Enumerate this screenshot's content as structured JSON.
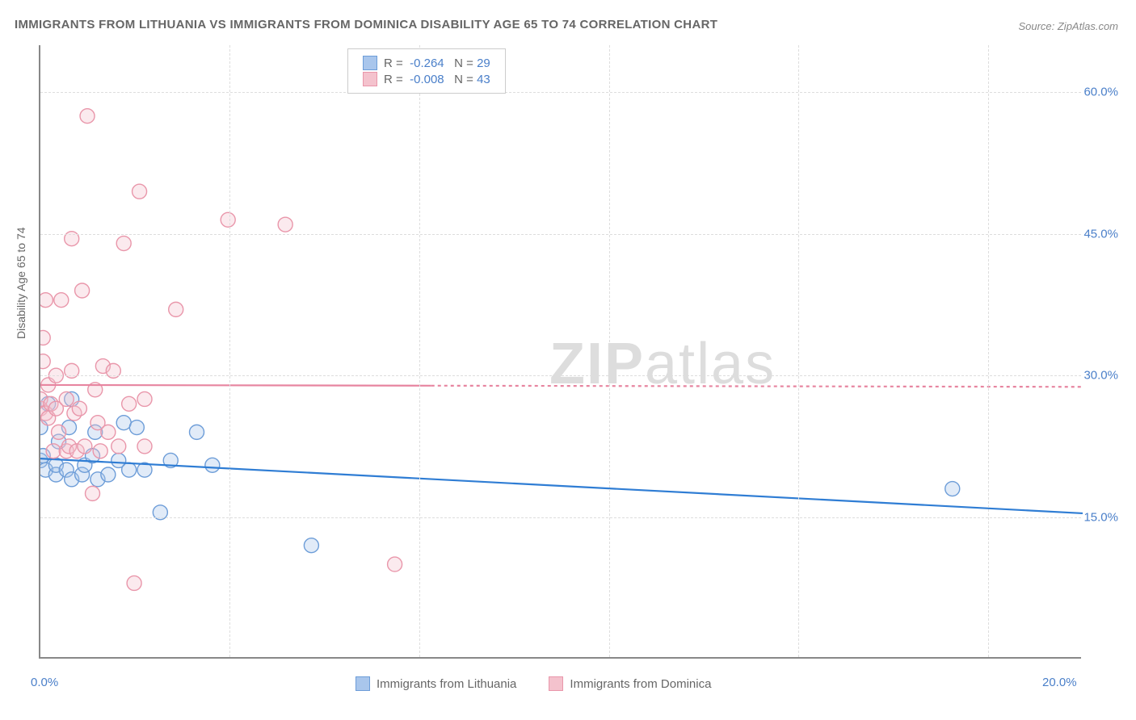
{
  "title": "IMMIGRANTS FROM LITHUANIA VS IMMIGRANTS FROM DOMINICA DISABILITY AGE 65 TO 74 CORRELATION CHART",
  "source": "Source: ZipAtlas.com",
  "y_axis_label": "Disability Age 65 to 74",
  "watermark": "ZIPatlas",
  "chart": {
    "type": "scatter",
    "xlim": [
      0,
      20
    ],
    "ylim": [
      0,
      65
    ],
    "x_ticks": [
      {
        "value": 0,
        "label": "0.0%"
      },
      {
        "value": 20,
        "label": "20.0%"
      }
    ],
    "y_ticks": [
      {
        "value": 15,
        "label": "15.0%"
      },
      {
        "value": 30,
        "label": "30.0%"
      },
      {
        "value": 45,
        "label": "45.0%"
      },
      {
        "value": 60,
        "label": "60.0%"
      }
    ],
    "grid_v_values": [
      3.63,
      7.27,
      10.91,
      14.55,
      18.18
    ],
    "plot_area_bg": "#ffffff",
    "grid_color": "#dddddd",
    "axis_color": "#888888",
    "marker_radius": 9,
    "marker_fill_opacity": 0.35,
    "marker_stroke_width": 1.4,
    "trend_line_width": 2.2,
    "series": [
      {
        "name": "Immigrants from Lithuania",
        "color_fill": "#a9c6ec",
        "color_stroke": "#6d9dd8",
        "color_line": "#2f7dd4",
        "R": "-0.264",
        "N": "29",
        "trend": {
          "x0": 0,
          "y0": 21.2,
          "x1": 20,
          "y1": 15.4
        },
        "points": [
          [
            0.0,
            21.0
          ],
          [
            0.0,
            24.5
          ],
          [
            0.05,
            21.5
          ],
          [
            0.1,
            20.0
          ],
          [
            0.15,
            27.0
          ],
          [
            0.3,
            19.5
          ],
          [
            0.3,
            20.5
          ],
          [
            0.35,
            23.0
          ],
          [
            0.5,
            20.0
          ],
          [
            0.55,
            24.5
          ],
          [
            0.6,
            19.0
          ],
          [
            0.6,
            27.5
          ],
          [
            0.8,
            19.5
          ],
          [
            0.85,
            20.5
          ],
          [
            1.0,
            21.5
          ],
          [
            1.05,
            24.0
          ],
          [
            1.1,
            19.0
          ],
          [
            1.3,
            19.5
          ],
          [
            1.5,
            21.0
          ],
          [
            1.6,
            25.0
          ],
          [
            1.7,
            20.0
          ],
          [
            1.85,
            24.5
          ],
          [
            2.0,
            20.0
          ],
          [
            2.3,
            15.5
          ],
          [
            2.5,
            21.0
          ],
          [
            3.0,
            24.0
          ],
          [
            3.3,
            20.5
          ],
          [
            5.2,
            12.0
          ],
          [
            17.5,
            18.0
          ]
        ]
      },
      {
        "name": "Immigrants from Dominica",
        "color_fill": "#f4c2cd",
        "color_stroke": "#e996aa",
        "color_line": "#e785a0",
        "R": "-0.008",
        "N": "43",
        "trend": {
          "x0": 0,
          "y0": 29.0,
          "x1": 20,
          "y1": 28.8
        },
        "trend_dash_after": 7.5,
        "points": [
          [
            0.0,
            26.5
          ],
          [
            0.0,
            27.5
          ],
          [
            0.05,
            31.5
          ],
          [
            0.05,
            34.0
          ],
          [
            0.1,
            26.0
          ],
          [
            0.1,
            38.0
          ],
          [
            0.15,
            29.0
          ],
          [
            0.15,
            25.5
          ],
          [
            0.2,
            27.0
          ],
          [
            0.25,
            22.0
          ],
          [
            0.3,
            26.5
          ],
          [
            0.3,
            30.0
          ],
          [
            0.35,
            24.0
          ],
          [
            0.4,
            38.0
          ],
          [
            0.5,
            22.0
          ],
          [
            0.5,
            27.5
          ],
          [
            0.55,
            22.5
          ],
          [
            0.6,
            30.5
          ],
          [
            0.6,
            44.5
          ],
          [
            0.65,
            26.0
          ],
          [
            0.7,
            22.0
          ],
          [
            0.75,
            26.5
          ],
          [
            0.8,
            39.0
          ],
          [
            0.85,
            22.5
          ],
          [
            0.9,
            57.5
          ],
          [
            1.0,
            17.5
          ],
          [
            1.05,
            28.5
          ],
          [
            1.1,
            25.0
          ],
          [
            1.15,
            22.0
          ],
          [
            1.2,
            31.0
          ],
          [
            1.3,
            24.0
          ],
          [
            1.4,
            30.5
          ],
          [
            1.5,
            22.5
          ],
          [
            1.6,
            44.0
          ],
          [
            1.7,
            27.0
          ],
          [
            1.8,
            8.0
          ],
          [
            1.9,
            49.5
          ],
          [
            2.0,
            22.5
          ],
          [
            2.0,
            27.5
          ],
          [
            2.6,
            37.0
          ],
          [
            3.6,
            46.5
          ],
          [
            4.7,
            46.0
          ],
          [
            6.8,
            10.0
          ]
        ]
      }
    ],
    "legend_top_labels": {
      "r_prefix": "R =",
      "n_prefix": "N ="
    },
    "legend_bottom": [
      {
        "label": "Immigrants from Lithuania",
        "fill": "#a9c6ec",
        "stroke": "#6d9dd8"
      },
      {
        "label": "Immigrants from Dominica",
        "fill": "#f4c2cd",
        "stroke": "#e996aa"
      }
    ]
  }
}
